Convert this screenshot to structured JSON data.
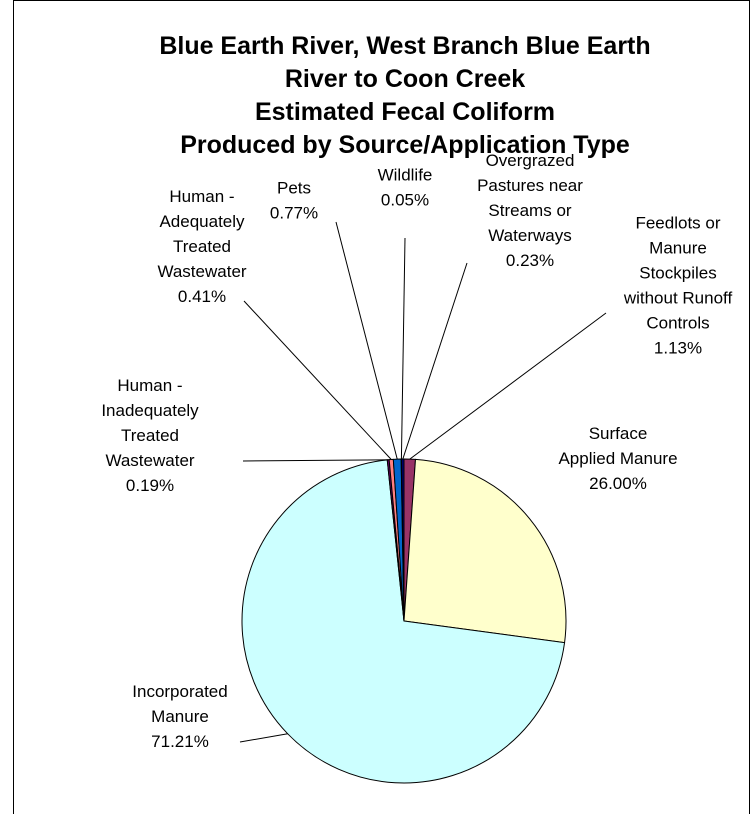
{
  "chart_data": {
    "type": "pie",
    "title_lines": [
      "Blue Earth River, West Branch Blue Earth",
      "River to Coon Creek",
      "Estimated Fecal Coliform",
      "Produced by Source/Application Type"
    ],
    "slices": [
      {
        "label_lines": [
          "Feedlots or",
          "Manure",
          "Stockpiles",
          "without Runoff",
          "Controls",
          "1.13%"
        ],
        "value": 1.13,
        "color": "#993366"
      },
      {
        "label_lines": [
          "Surface",
          "Applied Manure",
          "26.00%"
        ],
        "value": 26.0,
        "color": "#ffffcc"
      },
      {
        "label_lines": [
          "Incorporated",
          "Manure",
          "71.21%"
        ],
        "value": 71.21,
        "color": "#ccffff"
      },
      {
        "label_lines": [
          "Human -",
          "Inadequately",
          "Treated",
          "Wastewater",
          "0.19%"
        ],
        "value": 0.19,
        "color": "#660066"
      },
      {
        "label_lines": [
          "Human -",
          "Adequately",
          "Treated",
          "Wastewater",
          "0.41%"
        ],
        "value": 0.41,
        "color": "#ff8080"
      },
      {
        "label_lines": [
          "Pets",
          "0.77%"
        ],
        "value": 0.77,
        "color": "#0066cc"
      },
      {
        "label_lines": [
          "Wildlife",
          "0.05%"
        ],
        "value": 0.05,
        "color": "#ccccff"
      },
      {
        "label_lines": [
          "Overgrazed",
          "Pastures near",
          "Streams or",
          "Waterways",
          "0.23%"
        ],
        "value": 0.23,
        "color": "#000080"
      }
    ]
  }
}
